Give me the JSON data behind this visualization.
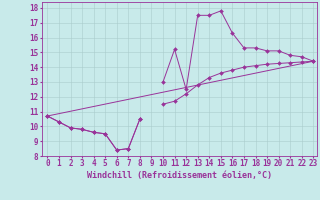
{
  "xlabel": "Windchill (Refroidissement éolien,°C)",
  "bg_color": "#c8eaea",
  "line_color": "#993399",
  "grid_color": "#aacccc",
  "xlim": [
    -0.5,
    23.3
  ],
  "ylim": [
    8,
    18.4
  ],
  "xticks": [
    0,
    1,
    2,
    3,
    4,
    5,
    6,
    7,
    8,
    9,
    10,
    11,
    12,
    13,
    14,
    15,
    16,
    17,
    18,
    19,
    20,
    21,
    22,
    23
  ],
  "yticks": [
    8,
    9,
    10,
    11,
    12,
    13,
    14,
    15,
    16,
    17,
    18
  ],
  "line1_x": [
    0,
    1,
    2,
    3,
    4,
    5,
    6,
    7,
    8,
    9,
    10,
    11,
    12,
    13,
    14,
    15,
    16,
    17,
    18,
    19,
    20,
    21,
    22,
    23
  ],
  "line1_y": [
    10.7,
    10.3,
    9.9,
    9.8,
    9.6,
    9.5,
    8.4,
    8.5,
    10.5,
    null,
    13.0,
    15.2,
    12.5,
    17.5,
    17.5,
    17.8,
    16.3,
    15.3,
    15.3,
    15.1,
    15.1,
    14.8,
    14.7,
    14.4
  ],
  "line2_x": [
    0,
    1,
    2,
    3,
    4,
    5,
    6,
    7,
    8,
    9,
    10,
    11,
    12,
    13,
    14,
    15,
    16,
    17,
    18,
    19,
    20,
    21,
    22,
    23
  ],
  "line2_y": [
    10.7,
    10.3,
    9.9,
    9.8,
    9.6,
    9.5,
    8.4,
    8.5,
    10.5,
    null,
    11.5,
    11.7,
    12.2,
    12.8,
    13.3,
    13.6,
    13.8,
    14.0,
    14.1,
    14.2,
    14.25,
    14.3,
    14.35,
    14.4
  ],
  "line3_x": [
    0,
    23
  ],
  "line3_y": [
    10.7,
    14.4
  ],
  "font_size_label": 6,
  "font_size_tick": 5.5,
  "marker": "D",
  "markersize": 2.0
}
